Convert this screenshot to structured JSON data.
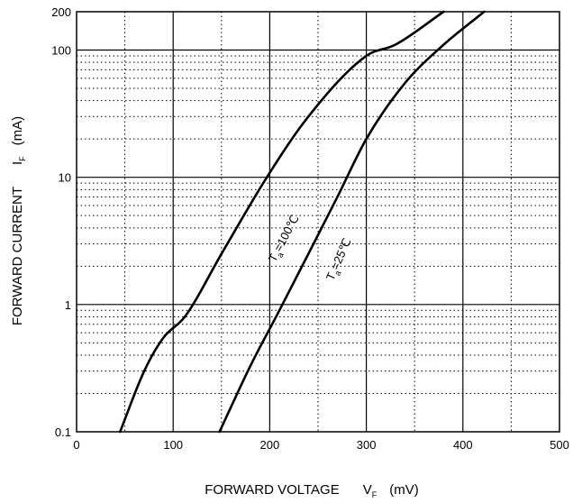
{
  "chart_data": {
    "type": "line",
    "xlabel": {
      "main": "FORWARD VOLTAGE",
      "symbol": "V",
      "sub": "F",
      "unit": "(mV)"
    },
    "ylabel": {
      "main": "FORWARD CURRENT",
      "symbol": "I",
      "sub": "F",
      "unit": "(mA)"
    },
    "xlim": [
      0,
      500
    ],
    "ylim": [
      0.1,
      200
    ],
    "yscale": "log",
    "grid": true,
    "x_ticks": [
      0,
      100,
      200,
      300,
      400,
      500
    ],
    "x_tick_labels": [
      "0",
      "100",
      "200",
      "300",
      "400",
      "500"
    ],
    "y_ticks": [
      0.1,
      1,
      10,
      100,
      200
    ],
    "y_tick_labels": [
      "0.1",
      "1",
      "10",
      "100",
      "200"
    ],
    "series": [
      {
        "name": "Ta=100℃",
        "label": {
          "symbol": "T",
          "sub": "a",
          "rest": "=100℃"
        },
        "x": [
          45,
          70,
          90,
          112,
          150,
          197,
          240,
          300,
          330,
          380
        ],
        "y": [
          0.1,
          0.3,
          0.55,
          0.8,
          2.5,
          10,
          30,
          90,
          110,
          200
        ]
      },
      {
        "name": "Ta=25℃",
        "label": {
          "symbol": "T",
          "sub": "a",
          "rest": "=25℃"
        },
        "x": [
          148,
          180,
          210,
          240,
          270,
          300,
          340,
          380,
          422
        ],
        "y": [
          0.1,
          0.33,
          0.9,
          2.5,
          7,
          20,
          55,
          110,
          200
        ]
      }
    ]
  }
}
